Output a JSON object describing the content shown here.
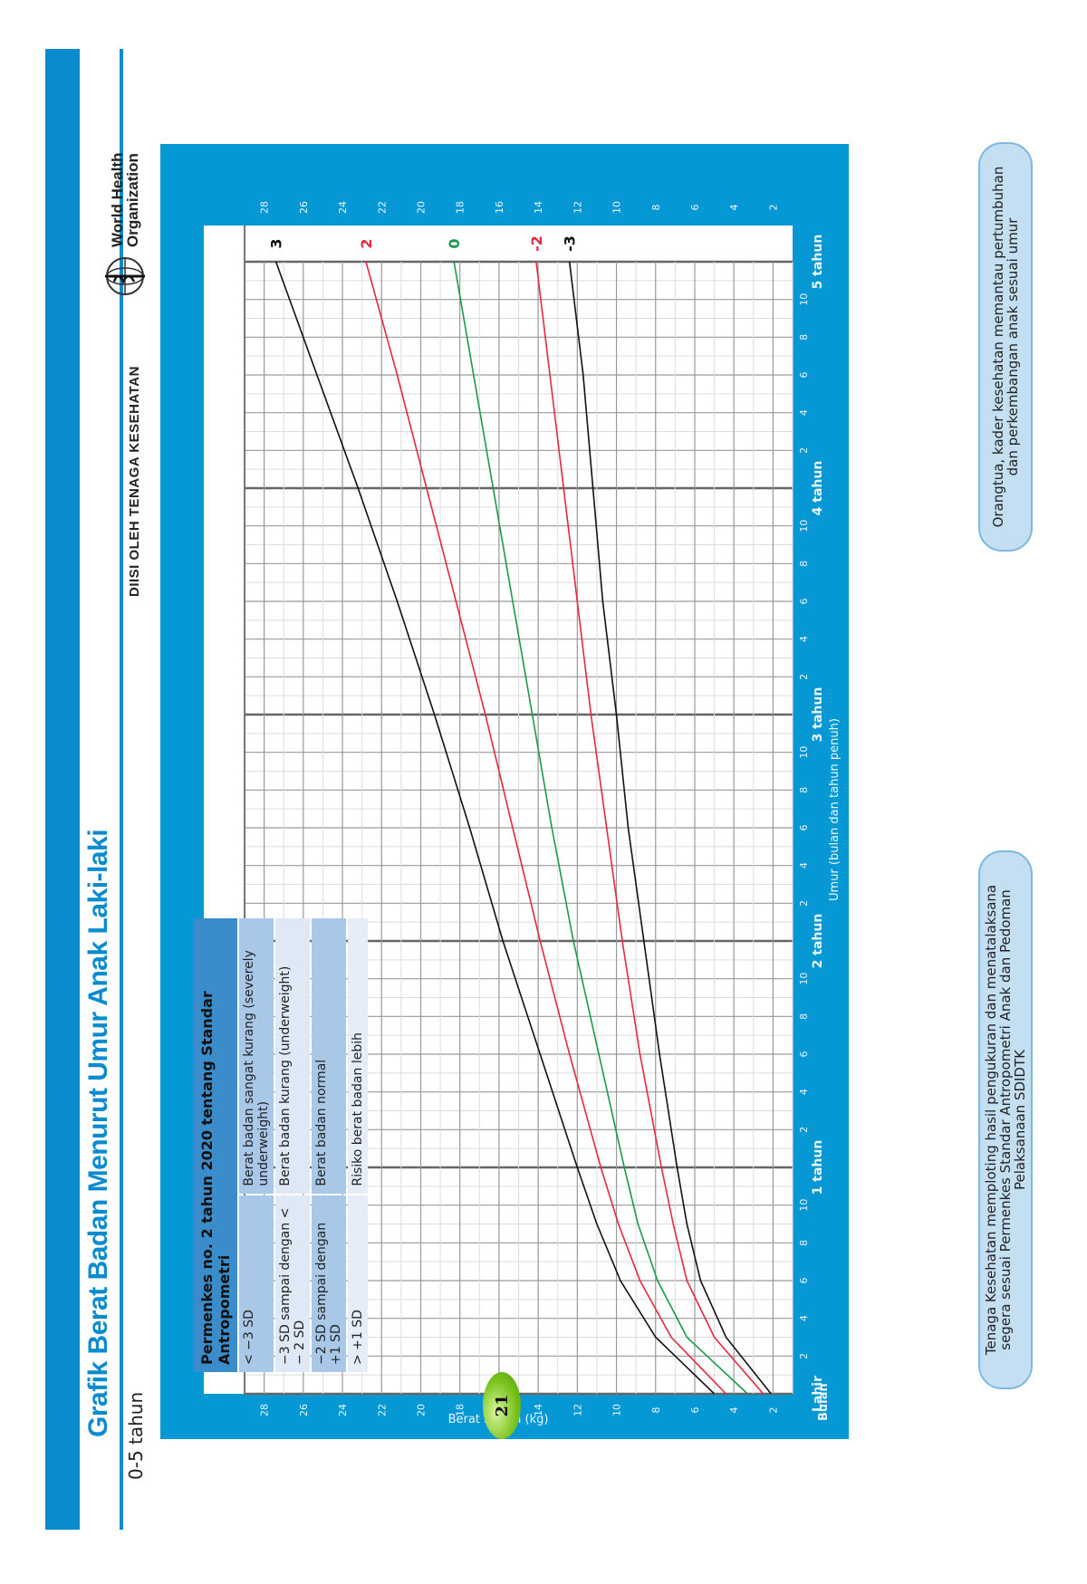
{
  "header": {
    "title": "Grafik Berat Badan Menurut Umur Anak Laki-laki",
    "subtitle": "0-5 tahun",
    "filled_by": "DIISI OLEH TENAGA KESEHATAN",
    "logo_text_line1": "World Health",
    "logo_text_line2": "Organization"
  },
  "legend_table": {
    "title": "Permenkes no. 2 tahun 2020 tentang Standar Antropometri",
    "rows": [
      {
        "range": "< −3 SD",
        "label": "Berat badan sangat kurang (severely underweight)"
      },
      {
        "range": "−3 SD sampai dengan < − 2 SD",
        "label": "Berat badan kurang (underweight)"
      },
      {
        "range": "−2 SD sampai dengan +1 SD",
        "label": "Berat badan normal"
      },
      {
        "range": "> +1 SD",
        "label": "Risiko berat badan lebih"
      }
    ]
  },
  "captions": {
    "left": "Tenaga Kesehatan memploting hasil pengukuran dan menatalaksana segera sesuai Permenkes Standar Antropometri Anak dan Pedoman Pelaksanaan SDIDTK",
    "right": "Orangtua, kader kesehatan memantau pertumbuhan dan perkembangan anak sesuai umur"
  },
  "page_number": "21",
  "colors": {
    "brand_blue": "#0a8bd0",
    "frame_blue": "#0598d4",
    "sd3": "#111111",
    "sd2": "#e8283c",
    "sd0": "#1a9a4a"
  },
  "chart_data": {
    "type": "line",
    "title": "Grafik Berat Badan Menurut Umur Anak Laki-laki (0-5 tahun)",
    "xlabel": "Umur (bulan dan tahun penuh)",
    "ylabel": "Berat Badan (kg)",
    "x_unit_label": "Bulan",
    "xlim": [
      0,
      60
    ],
    "ylim": [
      1,
      29
    ],
    "y_ticks": [
      2,
      4,
      6,
      8,
      10,
      12,
      14,
      16,
      18,
      20,
      22,
      24,
      26,
      28
    ],
    "x_tick_labels": [
      "Lahir",
      "2",
      "4",
      "6",
      "8",
      "10",
      "1 tahun",
      "2",
      "4",
      "6",
      "8",
      "10",
      "2 tahun",
      "2",
      "4",
      "6",
      "8",
      "10",
      "3 tahun",
      "2",
      "4",
      "6",
      "8",
      "10",
      "4 tahun",
      "2",
      "4",
      "6",
      "8",
      "10",
      "5 tahun"
    ],
    "grid": true,
    "x": [
      0,
      3,
      6,
      9,
      12,
      18,
      24,
      30,
      36,
      42,
      48,
      54,
      60
    ],
    "series": [
      {
        "name": "3",
        "color": "#111111",
        "values": [
          5.0,
          8.0,
          9.8,
          11.0,
          12.0,
          13.9,
          15.8,
          17.5,
          19.3,
          21.2,
          23.2,
          25.3,
          27.4
        ]
      },
      {
        "name": "2",
        "color": "#e8283c",
        "values": [
          4.4,
          7.2,
          8.8,
          9.9,
          10.8,
          12.4,
          13.9,
          15.3,
          16.7,
          18.2,
          19.7,
          21.2,
          22.8
        ]
      },
      {
        "name": "0",
        "color": "#1a9a4a",
        "values": [
          3.3,
          6.4,
          7.9,
          8.9,
          9.6,
          10.9,
          12.2,
          13.3,
          14.3,
          15.3,
          16.3,
          17.3,
          18.3
        ]
      },
      {
        "name": "-2",
        "color": "#e8283c",
        "values": [
          2.5,
          5.0,
          6.4,
          7.1,
          7.7,
          8.8,
          9.7,
          10.5,
          11.3,
          12.0,
          12.7,
          13.4,
          14.1
        ]
      },
      {
        "name": "-3",
        "color": "#111111",
        "values": [
          2.1,
          4.4,
          5.7,
          6.4,
          6.9,
          7.8,
          8.6,
          9.4,
          10.0,
          10.7,
          11.2,
          11.7,
          12.4
        ]
      }
    ]
  }
}
